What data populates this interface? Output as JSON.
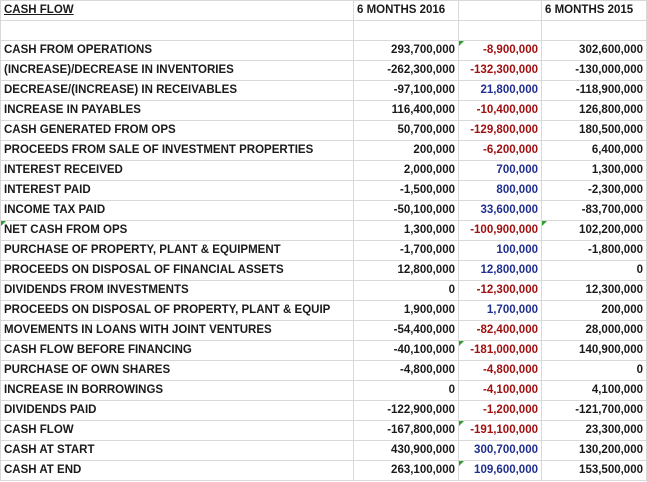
{
  "header": {
    "label": "CASH FLOW",
    "col1": "6 MONTHS 2016",
    "col2": "",
    "col3": "6 MONTHS 2015"
  },
  "rows": [
    {
      "label": "CASH FROM OPERATIONS",
      "v2016": "293,700,000",
      "diff": "-8,900,000",
      "diff_sign": "neg",
      "v2015": "302,600,000",
      "marker": true
    },
    {
      "label": "(INCREASE)/DECREASE IN INVENTORIES",
      "v2016": "-262,300,000",
      "diff": "-132,300,000",
      "diff_sign": "neg",
      "v2015": "-130,000,000"
    },
    {
      "label": "DECREASE/(INCREASE) IN RECEIVABLES",
      "v2016": "-97,100,000",
      "diff": "21,800,000",
      "diff_sign": "pos",
      "v2015": "-118,900,000"
    },
    {
      "label": "INCREASE IN PAYABLES",
      "v2016": "116,400,000",
      "diff": "-10,400,000",
      "diff_sign": "neg",
      "v2015": "126,800,000"
    },
    {
      "label": "CASH GENERATED FROM OPS",
      "v2016": "50,700,000",
      "diff": "-129,800,000",
      "diff_sign": "neg",
      "v2015": "180,500,000"
    },
    {
      "label": "PROCEEDS FROM SALE OF INVESTMENT PROPERTIES",
      "v2016": "200,000",
      "diff": "-6,200,000",
      "diff_sign": "neg",
      "v2015": "6,400,000"
    },
    {
      "label": "INTEREST RECEIVED",
      "v2016": "2,000,000",
      "diff": "700,000",
      "diff_sign": "pos",
      "v2015": "1,300,000"
    },
    {
      "label": "INTEREST PAID",
      "v2016": "-1,500,000",
      "diff": "800,000",
      "diff_sign": "pos",
      "v2015": "-2,300,000"
    },
    {
      "label": "INCOME TAX PAID",
      "v2016": "-50,100,000",
      "diff": "33,600,000",
      "diff_sign": "pos",
      "v2015": "-83,700,000"
    },
    {
      "label": "NET CASH FROM OPS",
      "v2016": "1,300,000",
      "diff": "-100,900,000",
      "diff_sign": "neg",
      "v2015": "102,200,000",
      "marker_label": true,
      "marker_v2015": true
    },
    {
      "label": "PURCHASE OF PROPERTY, PLANT & EQUIPMENT",
      "v2016": "-1,700,000",
      "diff": "100,000",
      "diff_sign": "pos",
      "v2015": "-1,800,000"
    },
    {
      "label": "PROCEEDS ON DISPOSAL OF FINANCIAL ASSETS",
      "v2016": "12,800,000",
      "diff": "12,800,000",
      "diff_sign": "pos",
      "v2015": "0"
    },
    {
      "label": "DIVIDENDS FROM INVESTMENTS",
      "v2016": "0",
      "diff": "-12,300,000",
      "diff_sign": "neg",
      "v2015": "12,300,000"
    },
    {
      "label": "PROCEEDS ON DISPOSAL OF PROPERTY, PLANT & EQUIP",
      "v2016": "1,900,000",
      "diff": "1,700,000",
      "diff_sign": "pos",
      "v2015": "200,000"
    },
    {
      "label": "MOVEMENTS IN LOANS WITH JOINT VENTURES",
      "v2016": "-54,400,000",
      "diff": "-82,400,000",
      "diff_sign": "neg",
      "v2015": "28,000,000"
    },
    {
      "label": "CASH FLOW BEFORE FINANCING",
      "v2016": "-40,100,000",
      "diff": "-181,000,000",
      "diff_sign": "neg",
      "v2015": "140,900,000",
      "marker": true
    },
    {
      "label": "PURCHASE OF OWN SHARES",
      "v2016": "-4,800,000",
      "diff": "-4,800,000",
      "diff_sign": "neg",
      "v2015": "0"
    },
    {
      "label": "INCREASE IN BORROWINGS",
      "v2016": "0",
      "diff": "-4,100,000",
      "diff_sign": "neg",
      "v2015": "4,100,000"
    },
    {
      "label": "DIVIDENDS PAID",
      "v2016": "-122,900,000",
      "diff": "-1,200,000",
      "diff_sign": "neg",
      "v2015": "-121,700,000"
    },
    {
      "label": "CASH FLOW",
      "v2016": "-167,800,000",
      "diff": "-191,100,000",
      "diff_sign": "neg",
      "v2015": "23,300,000",
      "marker": true
    },
    {
      "label": "CASH AT START",
      "v2016": "430,900,000",
      "diff": "300,700,000",
      "diff_sign": "pos",
      "v2015": "130,200,000"
    },
    {
      "label": "CASH AT END",
      "v2016": "263,100,000",
      "diff": "109,600,000",
      "diff_sign": "pos",
      "v2015": "153,500,000",
      "marker": true
    }
  ]
}
